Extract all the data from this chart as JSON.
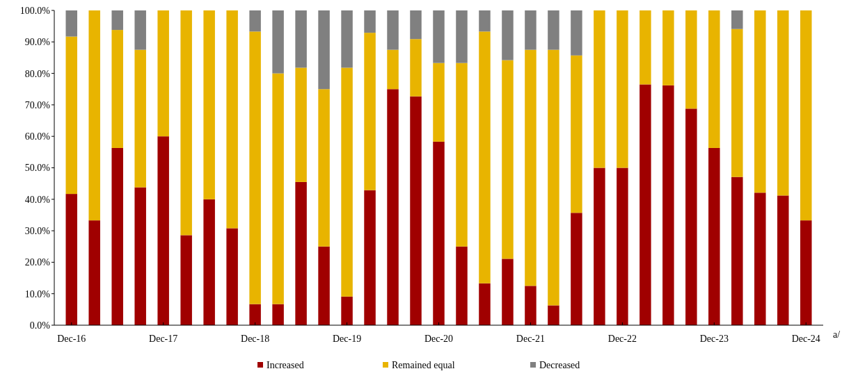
{
  "chart_data": {
    "type": "bar",
    "stacked": true,
    "categories": [
      "Dec-16",
      null,
      null,
      null,
      "Dec-17",
      null,
      null,
      null,
      "Dec-18",
      null,
      null,
      null,
      "Dec-19",
      null,
      null,
      null,
      "Dec-20",
      null,
      null,
      null,
      "Dec-21",
      null,
      null,
      null,
      "Dec-22",
      null,
      null,
      null,
      "Dec-23",
      null,
      null,
      null,
      "Dec-24"
    ],
    "series": [
      {
        "name": "Increased",
        "color": "#a00000",
        "values": [
          41.7,
          33.3,
          56.3,
          43.8,
          60.0,
          28.6,
          40.0,
          30.8,
          6.7,
          6.7,
          45.5,
          25.0,
          9.1,
          42.9,
          75.0,
          72.7,
          58.3,
          25.0,
          13.3,
          21.1,
          12.5,
          6.3,
          35.7,
          50.0,
          50.0,
          76.5,
          76.2,
          68.8,
          56.3,
          47.1,
          42.1,
          41.2,
          33.3
        ]
      },
      {
        "name": "Remained equal",
        "color": "#e8b400",
        "values": [
          50.0,
          66.7,
          37.5,
          43.7,
          40.0,
          71.4,
          60.0,
          69.2,
          86.6,
          73.3,
          36.3,
          50.0,
          72.7,
          50.0,
          12.5,
          18.2,
          25.0,
          58.3,
          80.0,
          63.1,
          75.0,
          81.2,
          50.0,
          50.0,
          50.0,
          23.5,
          23.8,
          31.2,
          43.7,
          47.0,
          57.9,
          58.8,
          66.7
        ]
      },
      {
        "name": "Decreased",
        "color": "#808080",
        "values": [
          8.3,
          0,
          6.2,
          12.5,
          0,
          0,
          0,
          0,
          6.7,
          20.0,
          18.2,
          25.0,
          18.2,
          7.1,
          12.5,
          9.1,
          16.7,
          16.7,
          6.7,
          15.8,
          12.5,
          12.5,
          14.3,
          0,
          0,
          0,
          0,
          0,
          0,
          5.9,
          0,
          0,
          0
        ]
      }
    ],
    "ylim": [
      0,
      100
    ],
    "yticks": [
      {
        "value": 0,
        "label": "0.0%"
      },
      {
        "value": 10,
        "label": "10.0%"
      },
      {
        "value": 20,
        "label": "20.0%"
      },
      {
        "value": 30,
        "label": "30.0%"
      },
      {
        "value": 40,
        "label": "40.0%"
      },
      {
        "value": 50,
        "label": "50.0%"
      },
      {
        "value": 60,
        "label": "60.0%"
      },
      {
        "value": 70,
        "label": "70.0%"
      },
      {
        "value": 80,
        "label": "80.0%"
      },
      {
        "value": 90,
        "label": "90.0%"
      },
      {
        "value": 100,
        "label": "100.0%"
      }
    ],
    "legend": "bottom",
    "annotations": [
      "a/"
    ]
  }
}
